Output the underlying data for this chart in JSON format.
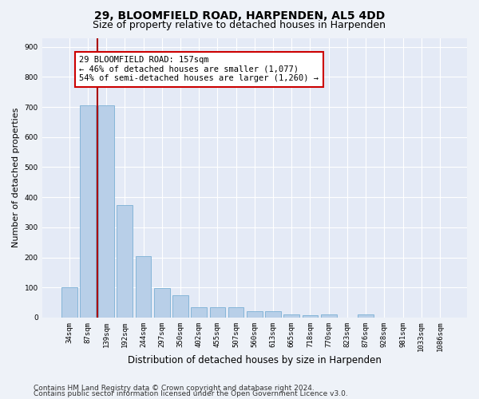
{
  "title": "29, BLOOMFIELD ROAD, HARPENDEN, AL5 4DD",
  "subtitle": "Size of property relative to detached houses in Harpenden",
  "xlabel": "Distribution of detached houses by size in Harpenden",
  "ylabel": "Number of detached properties",
  "bar_labels": [
    "34sqm",
    "87sqm",
    "139sqm",
    "192sqm",
    "244sqm",
    "297sqm",
    "350sqm",
    "402sqm",
    "455sqm",
    "507sqm",
    "560sqm",
    "613sqm",
    "665sqm",
    "718sqm",
    "770sqm",
    "823sqm",
    "876sqm",
    "928sqm",
    "981sqm",
    "1033sqm",
    "1086sqm"
  ],
  "bar_heights": [
    100,
    707,
    707,
    373,
    205,
    98,
    73,
    33,
    35,
    35,
    20,
    20,
    10,
    8,
    10,
    0,
    10,
    0,
    0,
    0,
    0
  ],
  "bar_color": "#b8cfe8",
  "bar_edge_color": "#7aafd4",
  "vline_x_index": 1.5,
  "vline_color": "#aa0000",
  "annotation_text": "29 BLOOMFIELD ROAD: 157sqm\n← 46% of detached houses are smaller (1,077)\n54% of semi-detached houses are larger (1,260) →",
  "annotation_box_color": "#ffffff",
  "annotation_box_edge": "#cc0000",
  "ylim": [
    0,
    930
  ],
  "yticks": [
    0,
    100,
    200,
    300,
    400,
    500,
    600,
    700,
    800,
    900
  ],
  "footer1": "Contains HM Land Registry data © Crown copyright and database right 2024.",
  "footer2": "Contains public sector information licensed under the Open Government Licence v3.0.",
  "bg_color": "#eef2f8",
  "plot_bg_color": "#e4eaf6",
  "grid_color": "#ffffff",
  "title_fontsize": 10,
  "subtitle_fontsize": 9,
  "tick_fontsize": 6.5,
  "ylabel_fontsize": 8,
  "xlabel_fontsize": 8.5,
  "annotation_fontsize": 7.5,
  "footer_fontsize": 6.5
}
